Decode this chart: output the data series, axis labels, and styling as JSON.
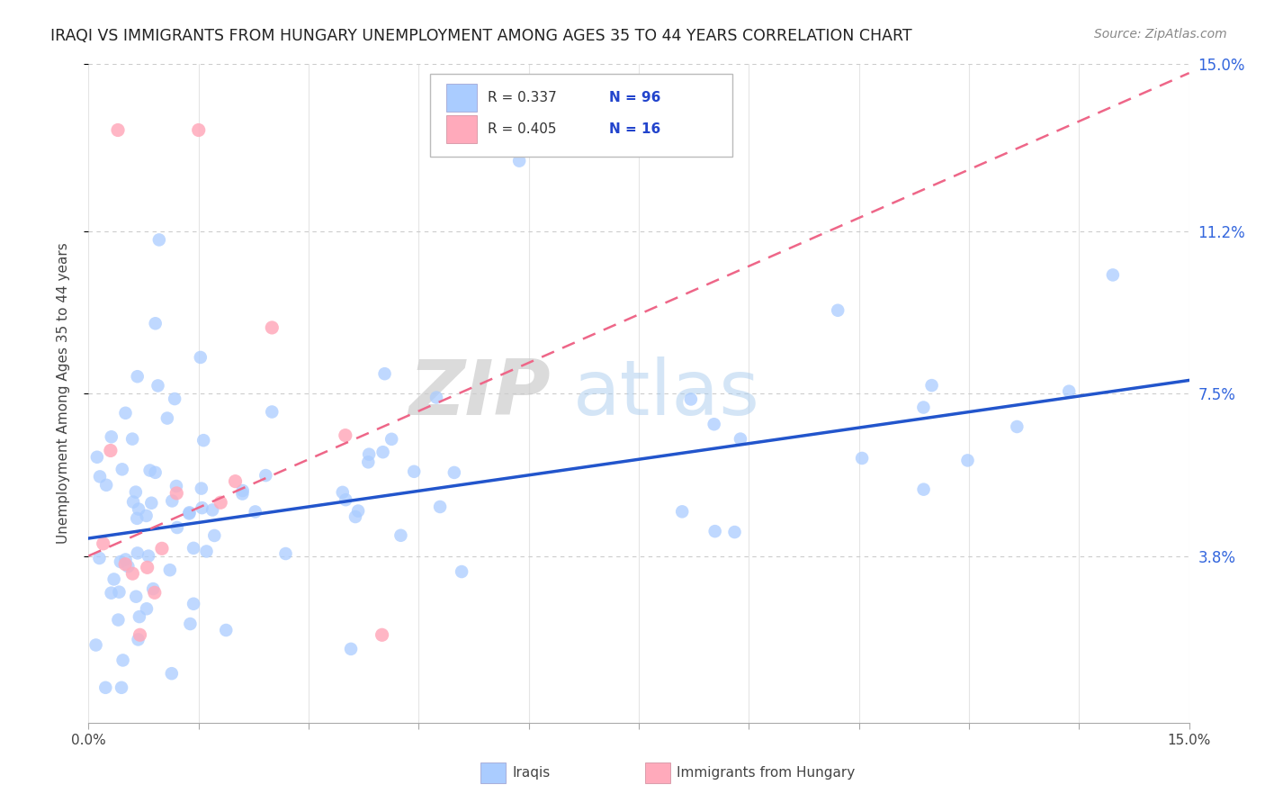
{
  "title": "IRAQI VS IMMIGRANTS FROM HUNGARY UNEMPLOYMENT AMONG AGES 35 TO 44 YEARS CORRELATION CHART",
  "source": "Source: ZipAtlas.com",
  "ylabel": "Unemployment Among Ages 35 to 44 years",
  "xlim": [
    0,
    0.15
  ],
  "ylim": [
    0,
    0.15
  ],
  "ytick_labels": [
    "3.8%",
    "7.5%",
    "11.2%",
    "15.0%"
  ],
  "ytick_values": [
    0.038,
    0.075,
    0.112,
    0.15
  ],
  "background_color": "#ffffff",
  "grid_color": "#cccccc",
  "iraqi_color": "#aaccff",
  "hungary_color": "#ffaabb",
  "iraqi_line_color": "#2255cc",
  "hungary_line_color": "#ee6688",
  "r_iraqi": "0.337",
  "n_iraqi": "96",
  "r_hungary": "0.405",
  "n_hungary": "16",
  "watermark_zip": "ZIP",
  "watermark_atlas": "atlas",
  "legend_label_iraqi": "Iraqis",
  "legend_label_hungary": "Immigrants from Hungary",
  "iraqi_trend_start_y": 0.042,
  "iraqi_trend_end_y": 0.078,
  "hungary_trend_start_y": 0.038,
  "hungary_trend_end_y": 0.148
}
